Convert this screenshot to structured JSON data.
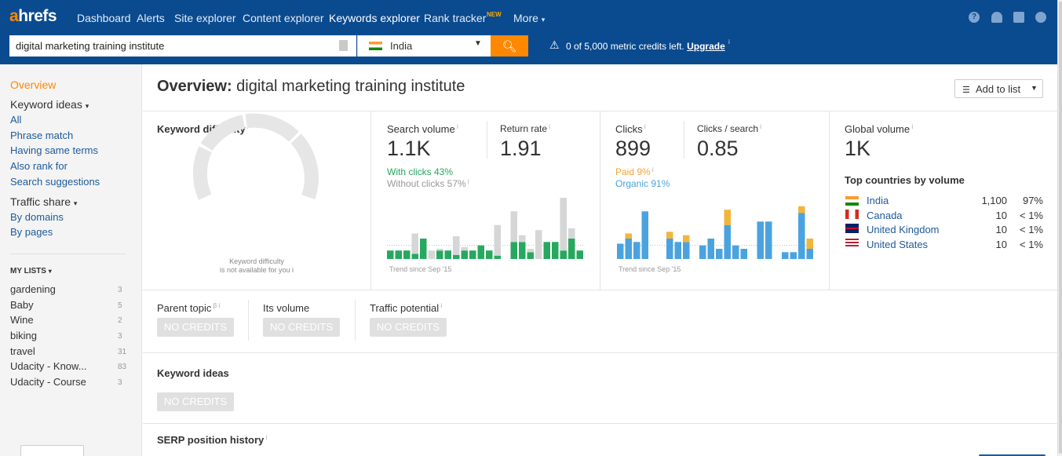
{
  "app": {
    "logo": "ahrefs",
    "nav": [
      "Dashboard",
      "Alerts",
      "Site explorer",
      "Content explorer",
      "Keywords explorer",
      "Rank tracker",
      "More"
    ],
    "nav_new_badge": "NEW",
    "header_icons": [
      "help-icon",
      "bell-icon",
      "message-icon",
      "user-icon"
    ]
  },
  "search": {
    "query": "digital marketing training institute",
    "country": "India",
    "credits_text": "0 of 5,000 metric credits left.",
    "upgrade_label": "Upgrade"
  },
  "sidebar": {
    "overview": "Overview",
    "keyword_ideas_title": "Keyword ideas",
    "keyword_ideas": [
      "All",
      "Phrase match",
      "Having same terms",
      "Also rank for",
      "Search suggestions"
    ],
    "traffic_share_title": "Traffic share",
    "traffic_share": [
      "By domains",
      "By pages"
    ],
    "my_lists_title": "MY LISTS",
    "lists": [
      {
        "name": "gardening",
        "count": "3"
      },
      {
        "name": "Baby",
        "count": "5"
      },
      {
        "name": "Wine",
        "count": "2"
      },
      {
        "name": "biking",
        "count": "3"
      },
      {
        "name": "travel",
        "count": "31"
      },
      {
        "name": "Udacity - Know...",
        "count": "83"
      },
      {
        "name": "Udacity - Course",
        "count": "3"
      }
    ]
  },
  "main": {
    "title_prefix": "Overview:",
    "title_keyword": "digital marketing training institute",
    "add_to_list": "Add to list",
    "kd_label": "Keyword difficulty",
    "kd_caption_1": "Keyword difficulty",
    "kd_caption_2": "is not available for you",
    "search_volume_label": "Search volume",
    "search_volume": "1.1K",
    "return_rate_label": "Return rate",
    "return_rate": "1.91",
    "with_clicks": "With clicks 43%",
    "without_clicks": "Without clicks 57%",
    "trend_label": "Trend since Sep '15",
    "clicks_label": "Clicks",
    "clicks": "899",
    "clicks_per_search_label": "Clicks / search",
    "clicks_per_search": "0.85",
    "paid": "Paid 9%",
    "organic": "Organic 91%",
    "global_volume_label": "Global volume",
    "global_volume": "1K",
    "top_countries_label": "Top countries by volume",
    "countries": [
      {
        "name": "India",
        "volume": "1,100",
        "share": "97%"
      },
      {
        "name": "Canada",
        "volume": "10",
        "share": "< 1%"
      },
      {
        "name": "United Kingdom",
        "volume": "10",
        "share": "< 1%"
      },
      {
        "name": "United States",
        "volume": "10",
        "share": "< 1%"
      }
    ],
    "parent_topic_label": "Parent topic",
    "its_volume_label": "Its volume",
    "traffic_potential_label": "Traffic potential",
    "no_credits": "NO CREDITS",
    "keyword_ideas_label": "Keyword ideas",
    "serp_history_label": "SERP position history"
  },
  "colors": {
    "header": "#0a4a8f",
    "accent_orange": "#ff8800",
    "with_clicks_green": "#27a85f",
    "without_clicks_gray": "#d6d6d6",
    "organic_blue": "#4aa3df",
    "paid_orange": "#f3b43c",
    "link_blue": "#1d5a9a"
  },
  "chart_data": [
    {
      "type": "bar",
      "name": "search-volume-trend",
      "stacked": true,
      "series": [
        {
          "name": "With clicks",
          "values": [
            0.25,
            0.25,
            0.25,
            0.15,
            0.6,
            0,
            0.25,
            0.25,
            0.12,
            0.25,
            0.25,
            0.4,
            0.25,
            0.1,
            0,
            0.5,
            0.5,
            0.2,
            0,
            0.5,
            0.5,
            0.25,
            0.6,
            0.25
          ]
        },
        {
          "name": "Without clicks",
          "values": [
            0,
            0,
            0,
            0.6,
            0,
            0.25,
            0.05,
            0,
            0.55,
            0.1,
            0,
            0,
            0,
            0.9,
            0,
            0.9,
            0.2,
            0.1,
            0.85,
            0,
            0,
            1.55,
            0.3,
            0
          ]
        }
      ]
    },
    {
      "type": "bar",
      "name": "clicks-trend",
      "stacked": true,
      "series": [
        {
          "name": "Organic",
          "values": [
            0.45,
            0.6,
            0.5,
            1.4,
            0,
            0,
            0.6,
            0.5,
            0.5,
            0,
            0.4,
            0.6,
            0.3,
            1.0,
            0.4,
            0.3,
            0,
            1.1,
            1.1,
            0,
            0.2,
            0.2,
            1.35,
            0.3
          ]
        },
        {
          "name": "Paid",
          "values": [
            0,
            0.15,
            0,
            0,
            0,
            0,
            0.2,
            0,
            0.2,
            0,
            0,
            0,
            0,
            0.45,
            0,
            0,
            0,
            0,
            0,
            0,
            0,
            0,
            0.2,
            0.3
          ]
        }
      ]
    }
  ]
}
